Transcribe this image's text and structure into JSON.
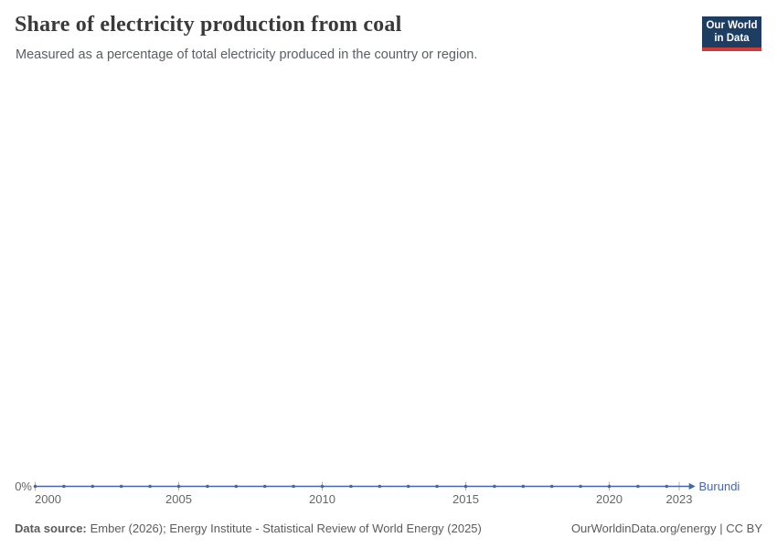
{
  "header": {
    "title": "Share of electricity production from coal",
    "subtitle": "Measured as a percentage of total electricity produced in the country or region."
  },
  "logo": {
    "line1": "Our World",
    "line2": "in Data"
  },
  "chart_data": {
    "type": "line",
    "title": "Share of electricity production from coal",
    "unit": "%",
    "x": [
      2000,
      2001,
      2002,
      2003,
      2004,
      2005,
      2006,
      2007,
      2008,
      2009,
      2010,
      2011,
      2012,
      2013,
      2014,
      2015,
      2016,
      2017,
      2018,
      2019,
      2020,
      2021,
      2022,
      2023
    ],
    "series": [
      {
        "name": "Burundi",
        "values": [
          0,
          0,
          0,
          0,
          0,
          0,
          0,
          0,
          0,
          0,
          0,
          0,
          0,
          0,
          0,
          0,
          0,
          0,
          0,
          0,
          0,
          0,
          0,
          0
        ]
      }
    ],
    "x_ticks": [
      2000,
      2005,
      2010,
      2015,
      2020,
      2023
    ],
    "xlim": [
      2000,
      2023
    ],
    "y_axis_label": "0%",
    "grid": false,
    "legend": "entity-label-at-line-end"
  },
  "footer": {
    "source_label": "Data source:",
    "source_text": "Ember (2026); Energy Institute - Statistical Review of World Energy (2025)",
    "origin": "OurWorldinData.org/energy | CC BY"
  },
  "colors": {
    "series_blue": "#4666a5",
    "axis_text": "#666666",
    "tick_gray": "#b0b0b0",
    "title_text": "#3a3a3a",
    "subtitle_text": "#595f63",
    "footer_text": "#5b5b5b",
    "logo_navy": "#1d3d63",
    "logo_red": "#cf3a35"
  }
}
